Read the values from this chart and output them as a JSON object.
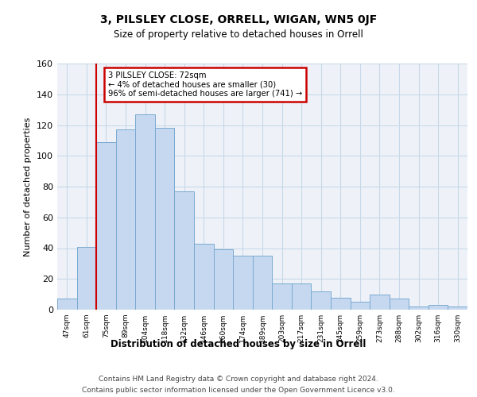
{
  "title": "3, PILSLEY CLOSE, ORRELL, WIGAN, WN5 0JF",
  "subtitle": "Size of property relative to detached houses in Orrell",
  "xlabel": "Distribution of detached houses by size in Orrell",
  "ylabel": "Number of detached properties",
  "footer1": "Contains HM Land Registry data © Crown copyright and database right 2024.",
  "footer2": "Contains public sector information licensed under the Open Government Licence v3.0.",
  "categories": [
    "47sqm",
    "61sqm",
    "75sqm",
    "89sqm",
    "104sqm",
    "118sqm",
    "132sqm",
    "146sqm",
    "160sqm",
    "174sqm",
    "189sqm",
    "203sqm",
    "217sqm",
    "231sqm",
    "245sqm",
    "259sqm",
    "273sqm",
    "288sqm",
    "302sqm",
    "316sqm",
    "330sqm"
  ],
  "values": [
    7,
    41,
    109,
    117,
    127,
    118,
    77,
    43,
    39,
    35,
    35,
    17,
    17,
    12,
    8,
    5,
    10,
    7,
    2,
    3,
    2
  ],
  "bar_color": "#c5d8f0",
  "bar_edge_color": "#7aaad0",
  "grid_color": "#c8d8e8",
  "background_color": "#eef2f8",
  "annotation_text": "3 PILSLEY CLOSE: 72sqm\n← 4% of detached houses are smaller (30)\n96% of semi-detached houses are larger (741) →",
  "annotation_box_color": "#ffffff",
  "annotation_box_edge_color": "#cc0000",
  "red_line_x": 1.5,
  "ylim": [
    0,
    160
  ],
  "yticks": [
    0,
    20,
    40,
    60,
    80,
    100,
    120,
    140,
    160
  ]
}
